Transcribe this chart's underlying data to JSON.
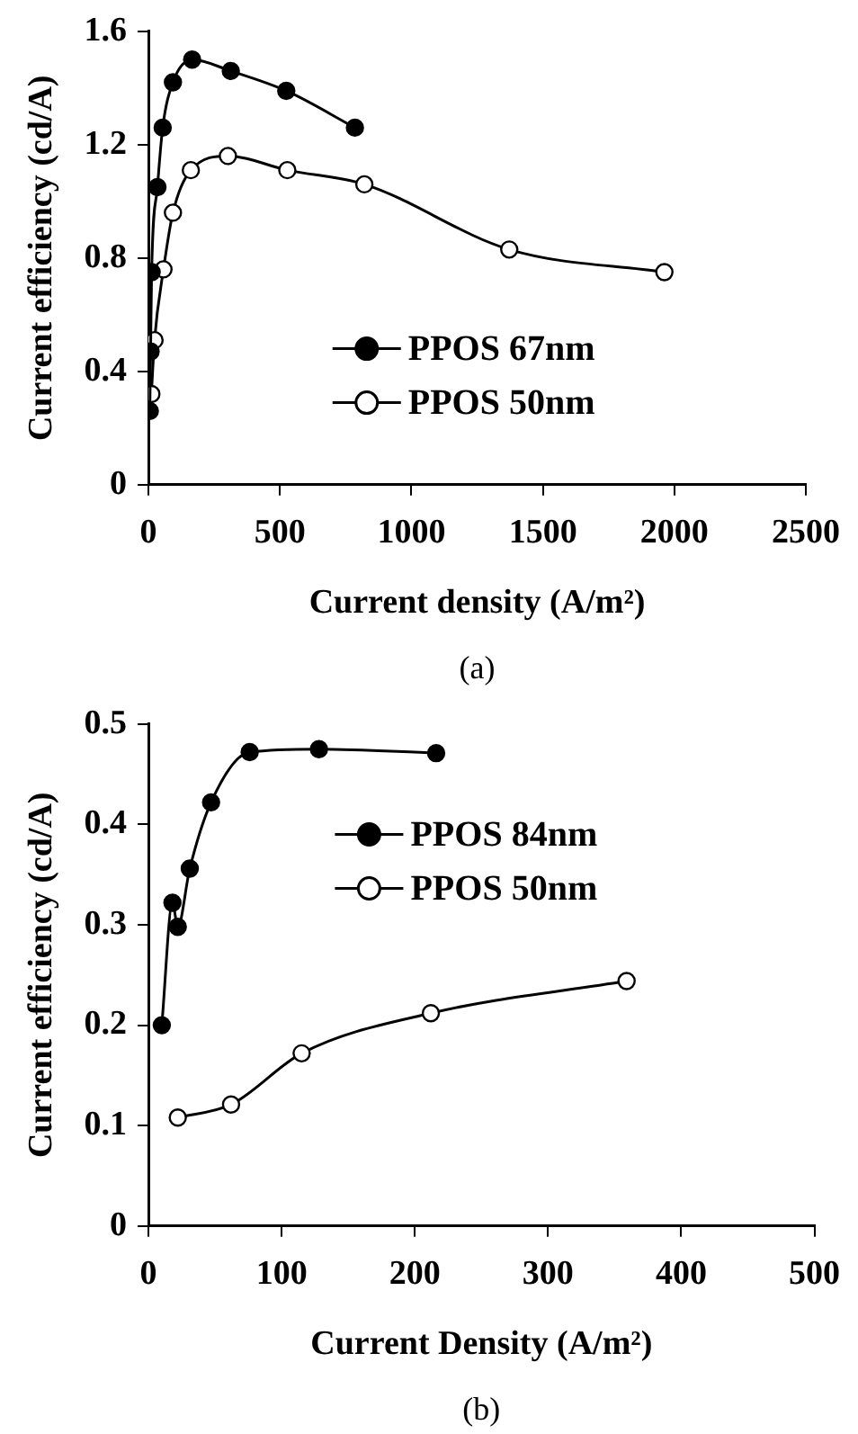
{
  "chart_data": [
    {
      "type": "line",
      "title": "(a)",
      "xlabel": "Current density (A/m²)",
      "ylabel": "Current efficiency (cd/A)",
      "xlim": [
        0,
        2500
      ],
      "xticks": [
        0,
        500,
        1000,
        1500,
        2000,
        2500
      ],
      "ylim": [
        0,
        1.6
      ],
      "yticks": [
        0,
        0.4,
        0.8,
        1.2,
        1.6
      ],
      "grid": false,
      "legend": "bottom right",
      "series": [
        {
          "name": "PPOS 67nm",
          "color": "#000000",
          "marker": "circle",
          "x": [
            5,
            8,
            12,
            34,
            54,
            93,
            166,
            313,
            524,
            785
          ],
          "values": [
            0.26,
            0.47,
            0.75,
            1.05,
            1.26,
            1.42,
            1.5,
            1.46,
            1.39,
            1.26
          ]
        },
        {
          "name": "PPOS 50nm",
          "color": "#000000",
          "marker": "circle_open",
          "x": [
            11,
            23,
            57,
            93,
            161,
            302,
            528,
            821,
            1372,
            1962
          ],
          "values": [
            0.32,
            0.51,
            0.76,
            0.96,
            1.11,
            1.16,
            1.11,
            1.06,
            0.83,
            0.75
          ]
        }
      ]
    },
    {
      "type": "line",
      "title": "(b)",
      "xlabel": "Current Density (A/m²)",
      "ylabel": "Current efficiency (cd/A)",
      "xlim": [
        0,
        500
      ],
      "xticks": [
        0,
        100,
        200,
        300,
        400,
        500
      ],
      "ylim": [
        0,
        0.5
      ],
      "yticks": [
        0,
        0.1,
        0.2,
        0.3,
        0.4,
        0.5
      ],
      "grid": false,
      "legend": "top right",
      "series": [
        {
          "name": "PPOS 84nm",
          "color": "#000000",
          "marker": "circle",
          "x": [
            10,
            18,
            22,
            31,
            47,
            76,
            128,
            216
          ],
          "values": [
            0.2,
            0.322,
            0.298,
            0.356,
            0.422,
            0.472,
            0.475,
            0.471
          ]
        },
        {
          "name": "PPOS 50nm",
          "color": "#000000",
          "marker": "circle_open",
          "x": [
            22,
            62,
            115,
            212,
            359
          ],
          "values": [
            0.108,
            0.121,
            0.172,
            0.212,
            0.244
          ]
        }
      ]
    }
  ]
}
